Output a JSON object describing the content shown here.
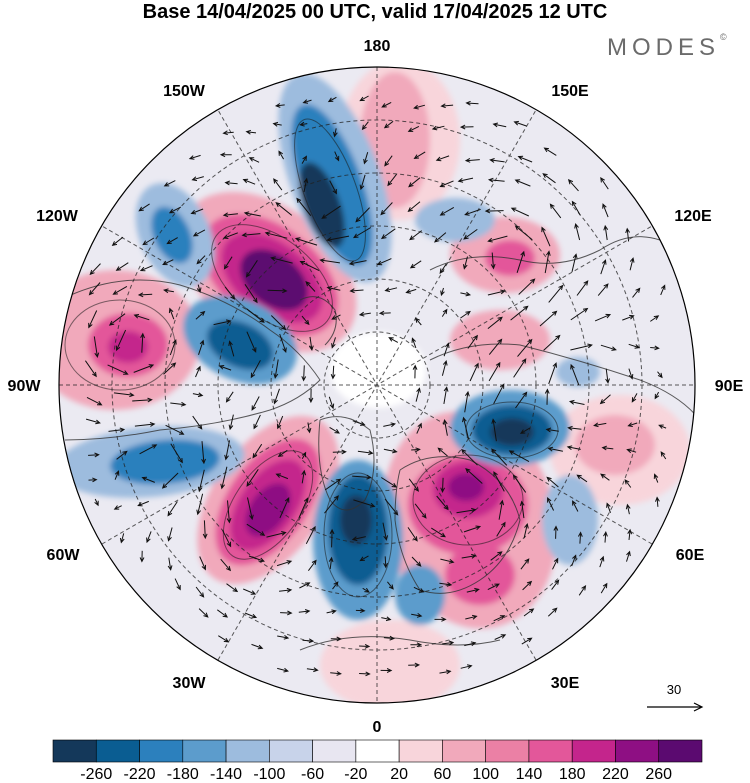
{
  "title": "Base 14/04/2025 00 UTC, valid 17/04/2025 12 UTC",
  "brand": "MODES",
  "brand_mark": "©",
  "longitude_labels": {
    "top": "180",
    "top_left": "150W",
    "top_right": "150E",
    "upper_left": "120W",
    "upper_right": "120E",
    "left": "90W",
    "right": "90E",
    "lower_left": "60W",
    "lower_right": "60E",
    "bottom_left": "30W",
    "bottom_right": "30E",
    "bottom": "0"
  },
  "vector_reference": {
    "label": "30"
  },
  "colorbar": {
    "colors": [
      "#14385a",
      "#0a5d92",
      "#2c80bd",
      "#5c9ccc",
      "#9dbcde",
      "#c8d3ea",
      "#e8e6f1",
      "#ffffff",
      "#f8d5db",
      "#f1a9bb",
      "#eb80a5",
      "#e3579a",
      "#c4258c",
      "#8e0f83",
      "#5b0a70"
    ],
    "labels": [
      "-260",
      "-220",
      "-180",
      "-140",
      "-100",
      "-60",
      "-20",
      "20",
      "60",
      "100",
      "140",
      "180",
      "220",
      "260"
    ]
  },
  "palette": {
    "neutral": "#ebeaf2",
    "map_border": "#000000"
  }
}
